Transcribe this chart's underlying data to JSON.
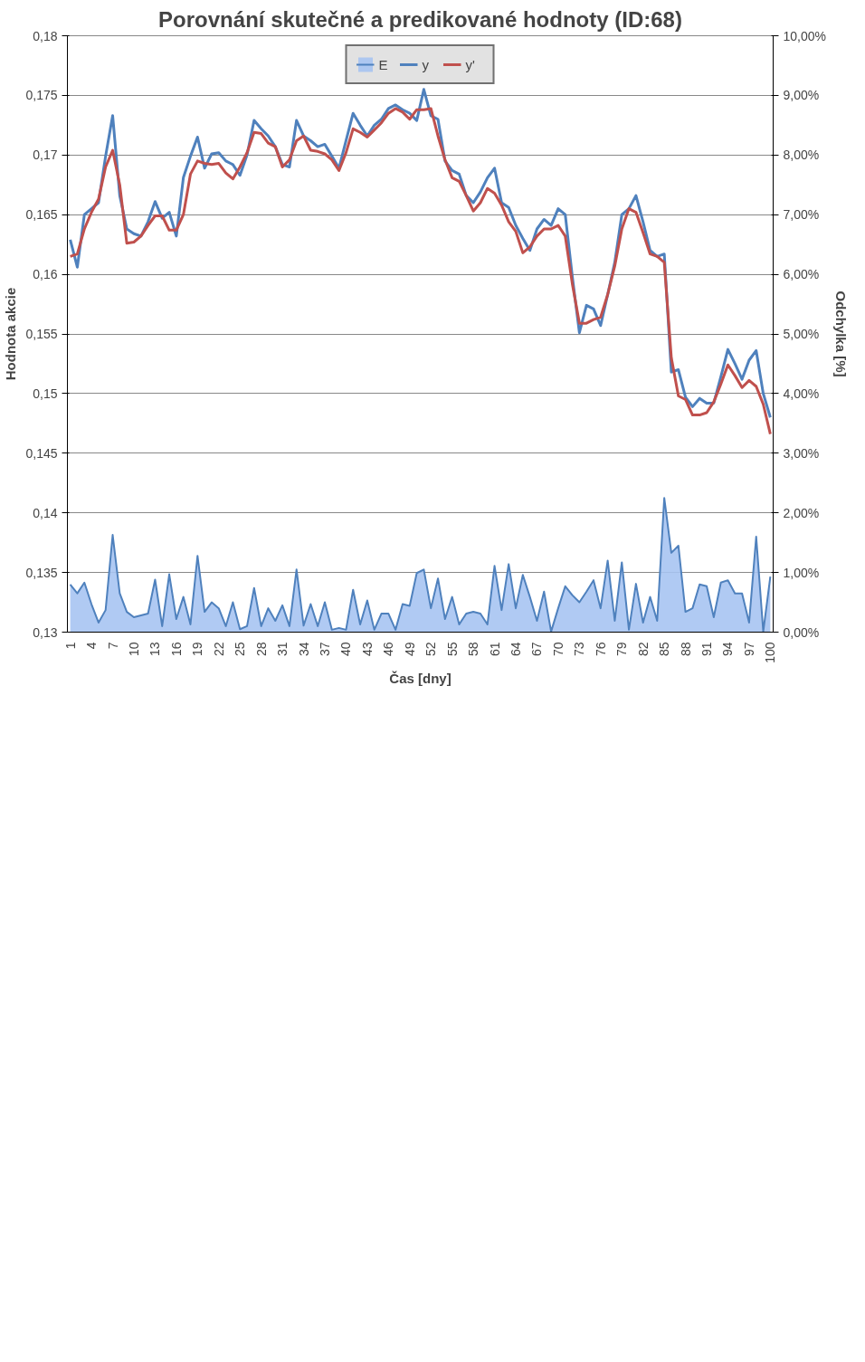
{
  "chart_data": {
    "type": "line",
    "title": "Porovnání skutečné a predikované hodnoty (ID:68)",
    "xlabel": "Čas [dny]",
    "ylabel": "Hodnota akcie",
    "y2label": "Odchylka [%]",
    "categories": [
      "1",
      null,
      null,
      "4",
      null,
      null,
      "7",
      null,
      null,
      "10",
      null,
      null,
      "13",
      null,
      null,
      "16",
      null,
      null,
      "19",
      null,
      null,
      "22",
      null,
      null,
      "25",
      null,
      null,
      "28",
      null,
      null,
      "31",
      null,
      null,
      "34",
      null,
      null,
      "37",
      null,
      null,
      "40",
      null,
      null,
      "43",
      null,
      null,
      "46",
      null,
      null,
      "49",
      null,
      null,
      "52",
      null,
      null,
      "55",
      null,
      null,
      "58",
      null,
      null,
      "61",
      null,
      null,
      "64",
      null,
      null,
      "67",
      null,
      null,
      "70",
      null,
      null,
      "73",
      null,
      null,
      "76",
      null,
      null,
      "79",
      null,
      null,
      "82",
      null,
      null,
      "85",
      null,
      null,
      "88",
      null,
      null,
      "91",
      null,
      null,
      "94",
      null,
      null,
      "97",
      null,
      null,
      "100"
    ],
    "series": [
      {
        "name": "E",
        "type": "area",
        "axis": "y2",
        "color": "#a7c4f2",
        "values": [
          0.8,
          0.65,
          0.83,
          0.47,
          0.16,
          0.37,
          1.63,
          0.65,
          0.34,
          0.25,
          0.28,
          0.31,
          0.88,
          0.1,
          0.97,
          0.22,
          0.59,
          0.13,
          1.28,
          0.34,
          0.5,
          0.4,
          0.1,
          0.5,
          0.05,
          0.1,
          0.74,
          0.1,
          0.4,
          0.19,
          0.45,
          0.1,
          1.05,
          0.11,
          0.47,
          0.1,
          0.5,
          0.04,
          0.07,
          0.04,
          0.71,
          0.13,
          0.53,
          0.04,
          0.31,
          0.31,
          0.04,
          0.47,
          0.44,
          0.99,
          1.05,
          0.4,
          0.9,
          0.22,
          0.59,
          0.13,
          0.31,
          0.34,
          0.31,
          0.13,
          1.11,
          0.37,
          1.14,
          0.4,
          0.96,
          0.59,
          0.19,
          0.68,
          0.01,
          0.4,
          0.77,
          0.62,
          0.5,
          0.68,
          0.87,
          0.4,
          1.2,
          0.19,
          1.17,
          0.04,
          0.81,
          0.16,
          0.59,
          0.19,
          2.25,
          1.33,
          1.45,
          0.34,
          0.4,
          0.8,
          0.77,
          0.25,
          0.83,
          0.87,
          0.65,
          0.65,
          0.16,
          1.6,
          0.01,
          0.93
        ]
      },
      {
        "name": "y",
        "color": "#4f81bd",
        "values": [
          0.1629,
          0.1606,
          0.165,
          0.1655,
          0.166,
          0.1699,
          0.1733,
          0.1666,
          0.1638,
          0.1634,
          0.1632,
          0.1644,
          0.1661,
          0.1647,
          0.1652,
          0.1632,
          0.1681,
          0.1699,
          0.1715,
          0.1689,
          0.1701,
          0.1702,
          0.1695,
          0.1692,
          0.1683,
          0.17,
          0.1729,
          0.1722,
          0.1716,
          0.1707,
          0.1692,
          0.169,
          0.1729,
          0.1716,
          0.1712,
          0.1707,
          0.1709,
          0.1699,
          0.1689,
          0.1712,
          0.1735,
          0.1725,
          0.1716,
          0.1725,
          0.173,
          0.1739,
          0.1742,
          0.1738,
          0.1735,
          0.1729,
          0.1755,
          0.1733,
          0.173,
          0.1695,
          0.1687,
          0.1684,
          0.1666,
          0.166,
          0.1669,
          0.1681,
          0.1689,
          0.166,
          0.1656,
          0.1641,
          0.163,
          0.162,
          0.1638,
          0.1646,
          0.1641,
          0.1655,
          0.165,
          0.1598,
          0.1551,
          0.1574,
          0.1571,
          0.1557,
          0.1583,
          0.161,
          0.165,
          0.1655,
          0.1666,
          0.1644,
          0.162,
          0.1615,
          0.1617,
          0.1518,
          0.152,
          0.1497,
          0.1489,
          0.1496,
          0.1492,
          0.1492,
          0.1514,
          0.1537,
          0.1525,
          0.1512,
          0.1528,
          0.1536,
          0.15,
          0.148
        ]
      },
      {
        "name": "y'",
        "color": "#c0504d",
        "values": [
          0.1615,
          0.1617,
          0.1638,
          0.1652,
          0.1663,
          0.169,
          0.1704,
          0.1675,
          0.1626,
          0.1627,
          0.1632,
          0.1641,
          0.1649,
          0.1649,
          0.1637,
          0.1637,
          0.165,
          0.1684,
          0.1695,
          0.1693,
          0.1692,
          0.1693,
          0.1685,
          0.168,
          0.169,
          0.1702,
          0.1719,
          0.1718,
          0.171,
          0.1707,
          0.169,
          0.1696,
          0.1712,
          0.1716,
          0.1704,
          0.1703,
          0.1701,
          0.1696,
          0.1687,
          0.1702,
          0.1722,
          0.1719,
          0.1715,
          0.1721,
          0.1727,
          0.1735,
          0.1739,
          0.1736,
          0.173,
          0.1738,
          0.1738,
          0.1739,
          0.1716,
          0.1696,
          0.1681,
          0.1678,
          0.1666,
          0.1653,
          0.166,
          0.1672,
          0.1668,
          0.1658,
          0.1644,
          0.1636,
          0.1618,
          0.1623,
          0.1632,
          0.1638,
          0.1638,
          0.1641,
          0.1632,
          0.1592,
          0.1559,
          0.1559,
          0.1562,
          0.1564,
          0.1583,
          0.1607,
          0.1638,
          0.1655,
          0.1652,
          0.1635,
          0.1617,
          0.1615,
          0.161,
          0.153,
          0.1498,
          0.1495,
          0.1482,
          0.1482,
          0.1484,
          0.1493,
          0.1508,
          0.1524,
          0.1515,
          0.1505,
          0.1511,
          0.1506,
          0.1491,
          0.1466
        ]
      }
    ],
    "ylim": [
      0.13,
      0.18
    ],
    "yticks": [
      {
        "value": 0.13,
        "label": "0,13"
      },
      {
        "value": 0.135,
        "label": "0,135"
      },
      {
        "value": 0.14,
        "label": "0,14"
      },
      {
        "value": 0.145,
        "label": "0,145"
      },
      {
        "value": 0.15,
        "label": "0,15"
      },
      {
        "value": 0.155,
        "label": "0,155"
      },
      {
        "value": 0.16,
        "label": "0,16"
      },
      {
        "value": 0.165,
        "label": "0,165"
      },
      {
        "value": 0.17,
        "label": "0,17"
      },
      {
        "value": 0.175,
        "label": "0,175"
      },
      {
        "value": 0.18,
        "label": "0,18"
      }
    ],
    "y2lim": [
      0,
      10
    ],
    "y2ticks": [
      {
        "value": 0,
        "label": "0,00%"
      },
      {
        "value": 1,
        "label": "1,00%"
      },
      {
        "value": 2,
        "label": "2,00%"
      },
      {
        "value": 3,
        "label": "3,00%"
      },
      {
        "value": 4,
        "label": "4,00%"
      },
      {
        "value": 5,
        "label": "5,00%"
      },
      {
        "value": 6,
        "label": "6,00%"
      },
      {
        "value": 7,
        "label": "7,00%"
      },
      {
        "value": 8,
        "label": "8,00%"
      },
      {
        "value": 9,
        "label": "9,00%"
      },
      {
        "value": 10,
        "label": "10,00%"
      }
    ],
    "grid": "y",
    "legend": "top",
    "marker": "none",
    "line_style": "solid"
  }
}
